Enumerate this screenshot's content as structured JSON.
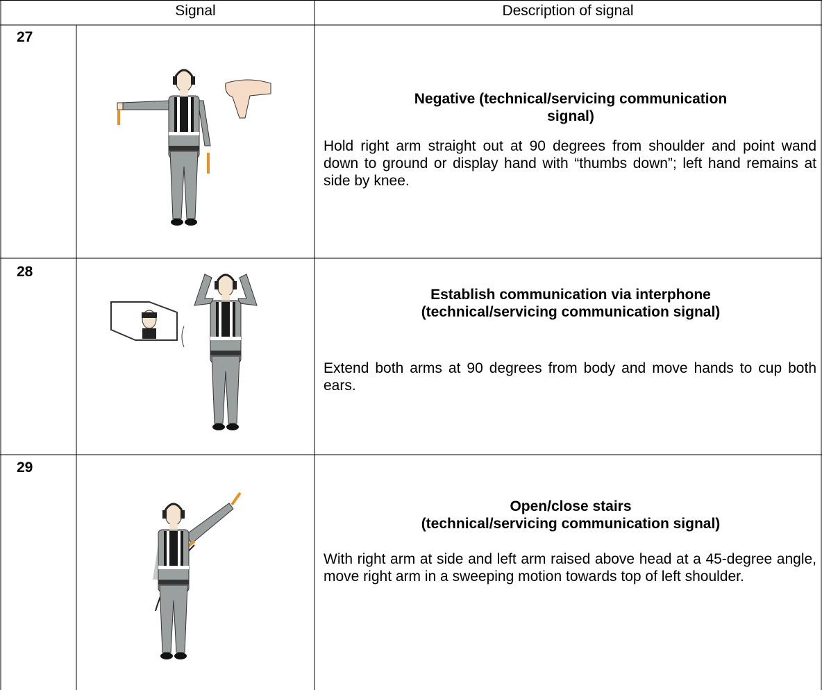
{
  "header": {
    "signal": "Signal",
    "description": "Description of signal"
  },
  "rows": [
    {
      "number": "27",
      "title_lines": [
        "Negative (technical/servicing communication",
        "signal)"
      ],
      "description": "Hold right arm straight out at 90 degrees from shoulder and point wand down to ground or display hand with “thumbs down”; left hand remains at side by knee."
    },
    {
      "number": "28",
      "title_lines": [
        "Establish communication via interphone",
        "(technical/servicing communication signal)"
      ],
      "description": "Extend both arms at 90 degrees from body and move hands to cup both ears."
    },
    {
      "number": "29",
      "title_lines": [
        "Open/close stairs",
        "(technical/servicing communication signal)"
      ],
      "description": "With right arm at side and left arm raised above head at a 45-degree angle, move right arm in a sweeping motion towards top of left shoulder."
    }
  ]
}
